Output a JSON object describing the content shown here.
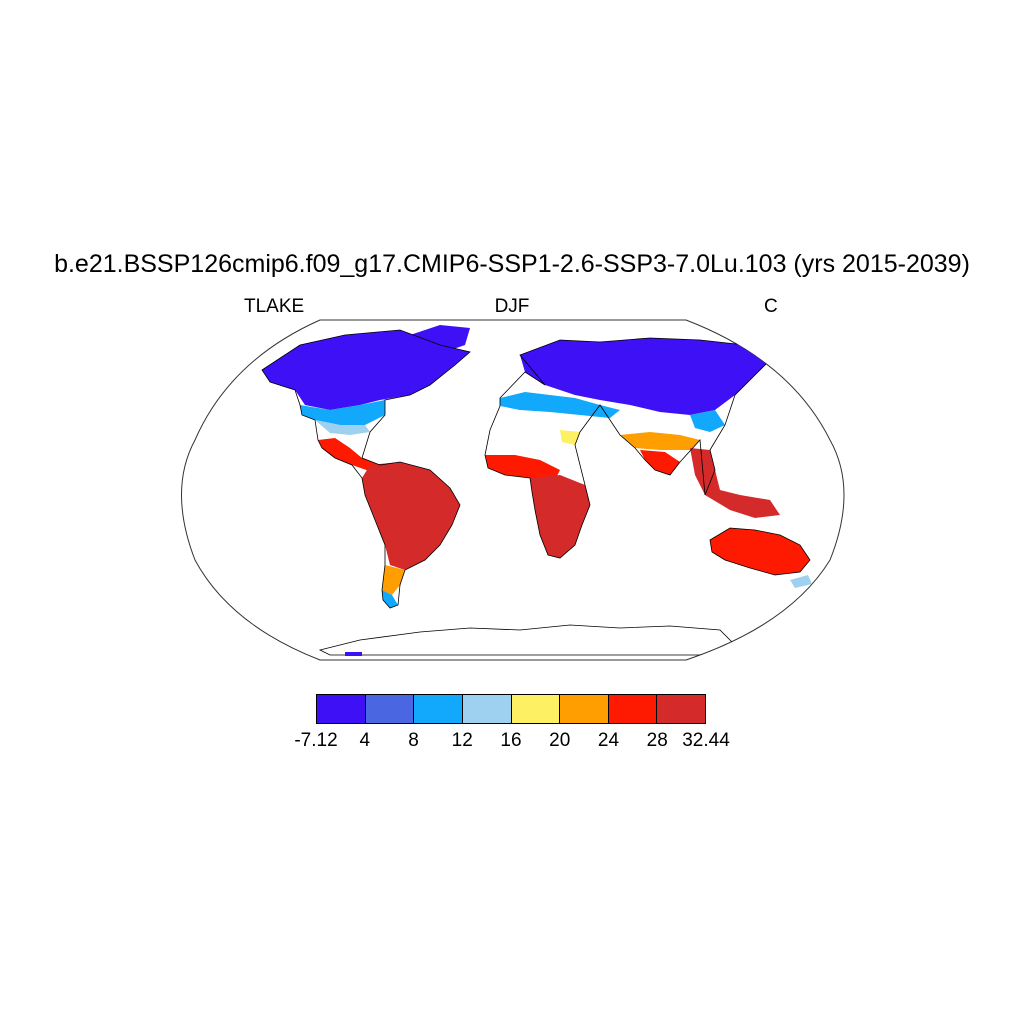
{
  "title": "b.e21.BSSP126cmip6.f09_g17.CMIP6-SSP1-2.6-SSP3-7.0Lu.103 (yrs 2015-2039)",
  "subtitle_left": "TLAKE",
  "subtitle_center": "DJF",
  "subtitle_right": "C",
  "colorbar": {
    "labels": [
      "-7.12",
      "4",
      "8",
      "12",
      "16",
      "20",
      "24",
      "28",
      "32.44"
    ],
    "colors": [
      "#3e10f5",
      "#4a66e0",
      "#12a8fb",
      "#9ed1ef",
      "#fef063",
      "#fe9e00",
      "#fe1a00",
      "#d42a2a"
    ]
  }
}
